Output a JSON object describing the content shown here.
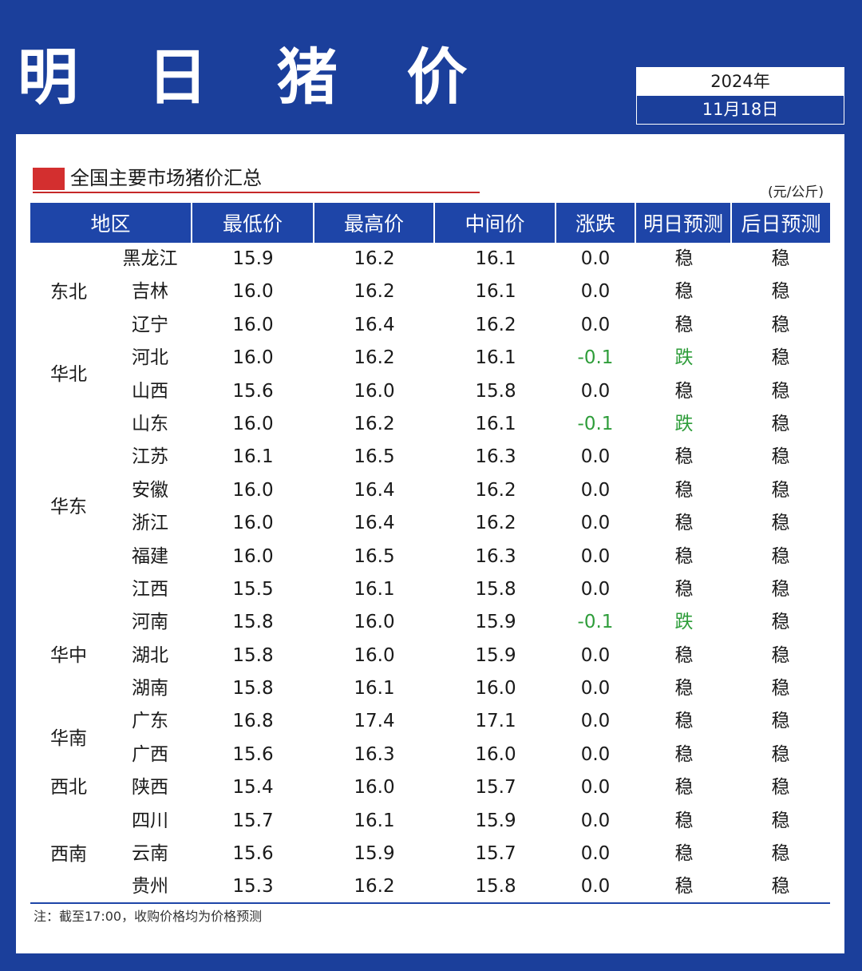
{
  "header": {
    "title": "明 日 猪 价",
    "year": "2024年",
    "date": "11月18日"
  },
  "section": {
    "title": "全国主要市场猪价汇总",
    "unit": "(元/公斤)"
  },
  "colors": {
    "background": "#1b3f9b",
    "header_row": "#1e45a8",
    "accent_red": "#d32f2f",
    "down_green": "#2e9d3a"
  },
  "table": {
    "columns": [
      "地区",
      "最低价",
      "最高价",
      "中间价",
      "涨跌",
      "明日预测",
      "后日预测"
    ],
    "regions": [
      {
        "name": "东北",
        "rows": 3
      },
      {
        "name": "华北",
        "rows": 2
      },
      {
        "name": "华东",
        "rows": 6
      },
      {
        "name": "华中",
        "rows": 3
      },
      {
        "name": "华南",
        "rows": 2
      },
      {
        "name": "西北",
        "rows": 1
      },
      {
        "name": "西南",
        "rows": 3
      }
    ],
    "rows": [
      {
        "province": "黑龙江",
        "low": "15.9",
        "high": "16.2",
        "mid": "16.1",
        "change": "0.0",
        "tomorrow": "稳",
        "after": "稳"
      },
      {
        "province": "吉林",
        "low": "16.0",
        "high": "16.2",
        "mid": "16.1",
        "change": "0.0",
        "tomorrow": "稳",
        "after": "稳"
      },
      {
        "province": "辽宁",
        "low": "16.0",
        "high": "16.4",
        "mid": "16.2",
        "change": "0.0",
        "tomorrow": "稳",
        "after": "稳"
      },
      {
        "province": "河北",
        "low": "16.0",
        "high": "16.2",
        "mid": "16.1",
        "change": "-0.1",
        "tomorrow": "跌",
        "after": "稳"
      },
      {
        "province": "山西",
        "low": "15.6",
        "high": "16.0",
        "mid": "15.8",
        "change": "0.0",
        "tomorrow": "稳",
        "after": "稳"
      },
      {
        "province": "山东",
        "low": "16.0",
        "high": "16.2",
        "mid": "16.1",
        "change": "-0.1",
        "tomorrow": "跌",
        "after": "稳"
      },
      {
        "province": "江苏",
        "low": "16.1",
        "high": "16.5",
        "mid": "16.3",
        "change": "0.0",
        "tomorrow": "稳",
        "after": "稳"
      },
      {
        "province": "安徽",
        "low": "16.0",
        "high": "16.4",
        "mid": "16.2",
        "change": "0.0",
        "tomorrow": "稳",
        "after": "稳"
      },
      {
        "province": "浙江",
        "low": "16.0",
        "high": "16.4",
        "mid": "16.2",
        "change": "0.0",
        "tomorrow": "稳",
        "after": "稳"
      },
      {
        "province": "福建",
        "low": "16.0",
        "high": "16.5",
        "mid": "16.3",
        "change": "0.0",
        "tomorrow": "稳",
        "after": "稳"
      },
      {
        "province": "江西",
        "low": "15.5",
        "high": "16.1",
        "mid": "15.8",
        "change": "0.0",
        "tomorrow": "稳",
        "after": "稳"
      },
      {
        "province": "河南",
        "low": "15.8",
        "high": "16.0",
        "mid": "15.9",
        "change": "-0.1",
        "tomorrow": "跌",
        "after": "稳"
      },
      {
        "province": "湖北",
        "low": "15.8",
        "high": "16.0",
        "mid": "15.9",
        "change": "0.0",
        "tomorrow": "稳",
        "after": "稳"
      },
      {
        "province": "湖南",
        "low": "15.8",
        "high": "16.1",
        "mid": "16.0",
        "change": "0.0",
        "tomorrow": "稳",
        "after": "稳"
      },
      {
        "province": "广东",
        "low": "16.8",
        "high": "17.4",
        "mid": "17.1",
        "change": "0.0",
        "tomorrow": "稳",
        "after": "稳"
      },
      {
        "province": "广西",
        "low": "15.6",
        "high": "16.3",
        "mid": "16.0",
        "change": "0.0",
        "tomorrow": "稳",
        "after": "稳"
      },
      {
        "province": "陕西",
        "low": "15.4",
        "high": "16.0",
        "mid": "15.7",
        "change": "0.0",
        "tomorrow": "稳",
        "after": "稳"
      },
      {
        "province": "四川",
        "low": "15.7",
        "high": "16.1",
        "mid": "15.9",
        "change": "0.0",
        "tomorrow": "稳",
        "after": "稳"
      },
      {
        "province": "云南",
        "low": "15.6",
        "high": "15.9",
        "mid": "15.7",
        "change": "0.0",
        "tomorrow": "稳",
        "after": "稳"
      },
      {
        "province": "贵州",
        "low": "15.3",
        "high": "16.2",
        "mid": "15.8",
        "change": "0.0",
        "tomorrow": "稳",
        "after": "稳"
      }
    ]
  },
  "footer": {
    "note": "注：截至17:00，收购价格均为价格预测"
  }
}
